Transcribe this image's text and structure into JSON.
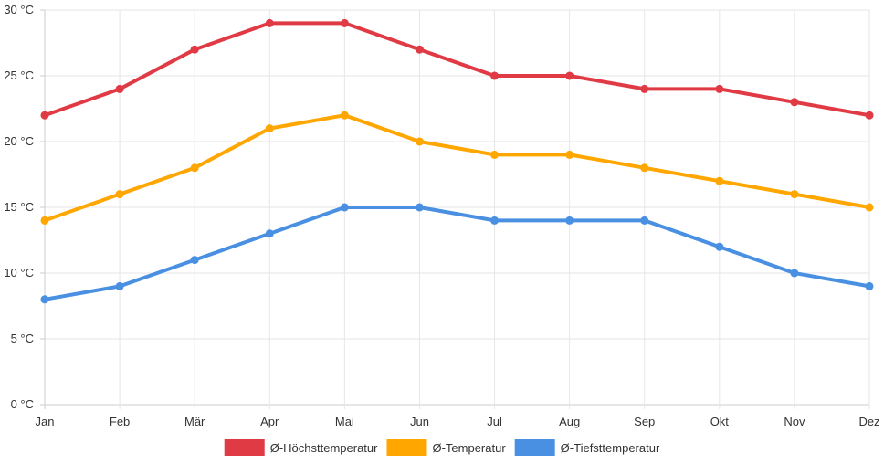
{
  "chart_data": {
    "type": "line",
    "title": "",
    "xlabel": "",
    "ylabel": "",
    "y_unit_suffix": " °C",
    "ylim": [
      0,
      30
    ],
    "ytick_step": 5,
    "grid": true,
    "legend_position": "bottom-center",
    "categories": [
      "Jan",
      "Feb",
      "Mär",
      "Apr",
      "Mai",
      "Jun",
      "Jul",
      "Aug",
      "Sep",
      "Okt",
      "Nov",
      "Dez"
    ],
    "series": [
      {
        "name": "Ø-Höchsttemperatur",
        "color": "#e03a45",
        "values": [
          22,
          24,
          27,
          29,
          29,
          27,
          25,
          25,
          24,
          24,
          23,
          22
        ]
      },
      {
        "name": "Ø-Temperatur",
        "color": "#ffa600",
        "values": [
          14,
          16,
          18,
          21,
          22,
          20,
          19,
          19,
          18,
          17,
          16,
          15
        ]
      },
      {
        "name": "Ø-Tiefsttemperatur",
        "color": "#4a90e2",
        "values": [
          8,
          9,
          11,
          13,
          15,
          15,
          14,
          14,
          14,
          12,
          10,
          9
        ]
      }
    ]
  }
}
